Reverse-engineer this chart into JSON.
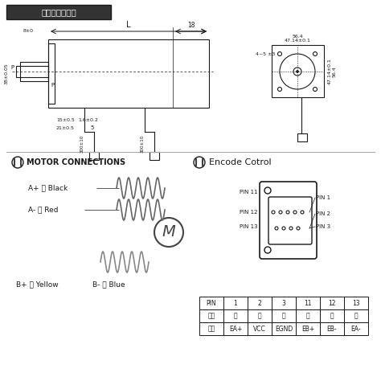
{
  "title": "电机尺寸参考图",
  "bg_color": "#ffffff",
  "line_color": "#1a1a1a",
  "motor_connections_title": "MOTOR CONNECTIONS",
  "encode_title": "Encode Cotrol",
  "coil_color": "#555555",
  "table_data": {
    "headers": [
      "PIN",
      "1",
      "2",
      "3",
      "11",
      "12",
      "13"
    ],
    "row1": [
      "颜色",
      "黑",
      "红",
      "白",
      "黄",
      "绿",
      "蓝"
    ],
    "row2": [
      "定义",
      "EA+",
      "VCC",
      "EGND",
      "EB+",
      "EB-",
      "EA-"
    ]
  },
  "labels": {
    "a_plus": "A+ 黑 Black",
    "a_minus": "A- 红 Red",
    "b_plus": "B+ 黄 Yellow",
    "b_minus": "B- 蓝 Blue"
  },
  "dim_labels": {
    "L": "L",
    "18": "18",
    "P_top": "P",
    "P_bot": "P",
    "8_0": "8±0",
    "56_4": "56.4",
    "47_14": "47.14±0.1",
    "15_05": "15±0.5",
    "21_05": "21±0.5",
    "1_6": "1.6±0.2",
    "5": "5",
    "300_10": "300±10",
    "4_5": "4~5 ±3"
  }
}
